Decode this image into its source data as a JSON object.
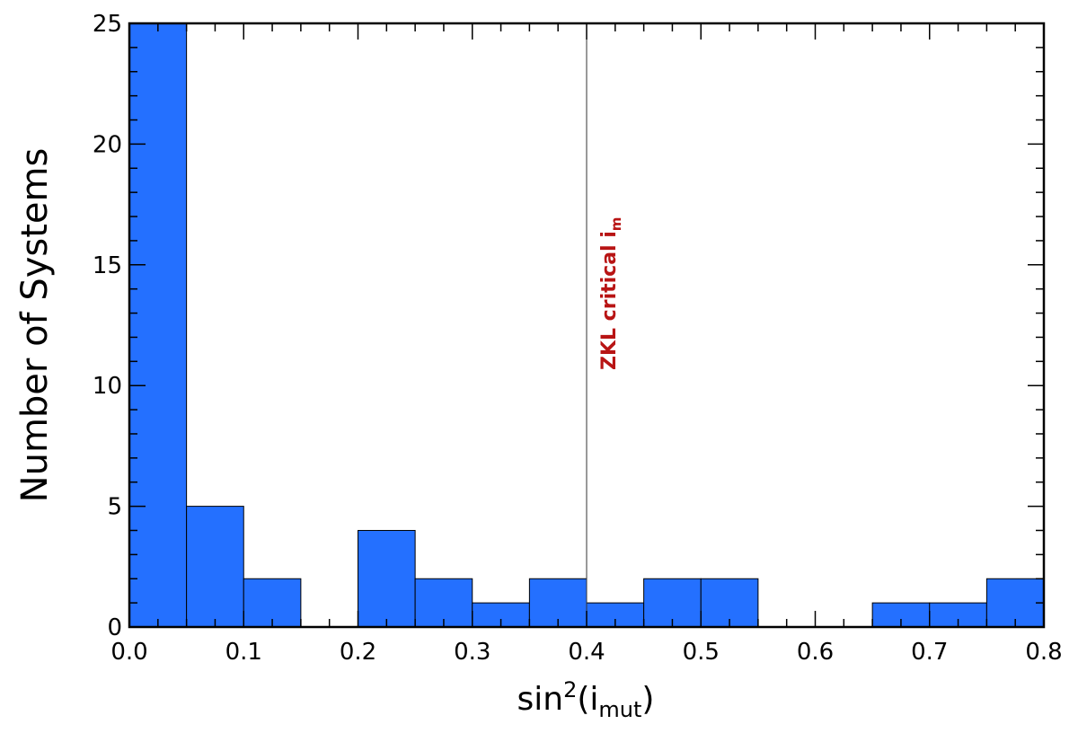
{
  "chart_data": {
    "type": "bar",
    "xlabel": {
      "base": "sin",
      "sup": "2",
      "open": "(i",
      "sub": "mut",
      "close": ")"
    },
    "ylabel": "Number of Systems",
    "xlim": [
      0.0,
      0.8
    ],
    "ylim": [
      0,
      25
    ],
    "bin_width": 0.05,
    "bins": [
      {
        "x0": 0.0,
        "x1": 0.05,
        "count": 25
      },
      {
        "x0": 0.05,
        "x1": 0.1,
        "count": 5
      },
      {
        "x0": 0.1,
        "x1": 0.15,
        "count": 2
      },
      {
        "x0": 0.15,
        "x1": 0.2,
        "count": 0
      },
      {
        "x0": 0.2,
        "x1": 0.25,
        "count": 4
      },
      {
        "x0": 0.25,
        "x1": 0.3,
        "count": 2
      },
      {
        "x0": 0.3,
        "x1": 0.35,
        "count": 1
      },
      {
        "x0": 0.35,
        "x1": 0.4,
        "count": 2
      },
      {
        "x0": 0.4,
        "x1": 0.45,
        "count": 1
      },
      {
        "x0": 0.45,
        "x1": 0.5,
        "count": 2
      },
      {
        "x0": 0.5,
        "x1": 0.55,
        "count": 2
      },
      {
        "x0": 0.55,
        "x1": 0.6,
        "count": 0
      },
      {
        "x0": 0.6,
        "x1": 0.65,
        "count": 0
      },
      {
        "x0": 0.65,
        "x1": 0.7,
        "count": 1
      },
      {
        "x0": 0.7,
        "x1": 0.75,
        "count": 1
      },
      {
        "x0": 0.75,
        "x1": 0.8,
        "count": 2
      }
    ],
    "x_ticks": [
      "0.0",
      "0.1",
      "0.2",
      "0.3",
      "0.4",
      "0.5",
      "0.6",
      "0.7",
      "0.8"
    ],
    "y_ticks": [
      "0",
      "5",
      "10",
      "15",
      "20",
      "25"
    ],
    "bar_color": "#2470ff",
    "reference_line": {
      "x": 0.4,
      "label": "ZKL critical i",
      "label_sub": "m",
      "label_color": "#b81414"
    },
    "grid": false,
    "legend": "none"
  }
}
